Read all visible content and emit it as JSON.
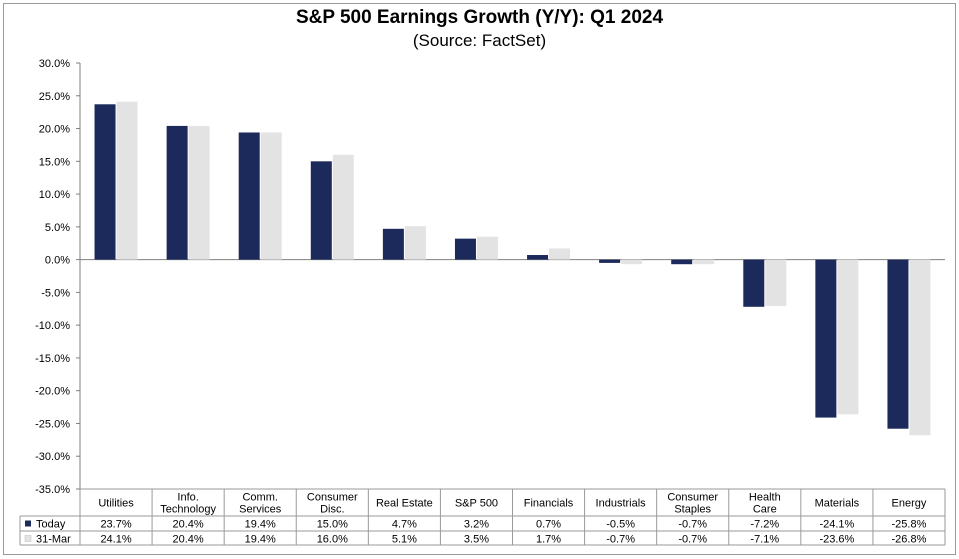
{
  "chart_data": {
    "type": "bar",
    "title": "S&P 500 Earnings Growth (Y/Y): Q1 2024",
    "subtitle": "(Source: FactSet)",
    "categories": [
      [
        "Utilities"
      ],
      [
        "Info.",
        "Technology"
      ],
      [
        "Comm.",
        "Services"
      ],
      [
        "Consumer",
        "Disc."
      ],
      [
        "Real Estate"
      ],
      [
        "S&P 500"
      ],
      [
        "Financials"
      ],
      [
        "Industrials"
      ],
      [
        "Consumer",
        "Staples"
      ],
      [
        "Health",
        "Care"
      ],
      [
        "Materials"
      ],
      [
        "Energy"
      ]
    ],
    "series": [
      {
        "name": "Today",
        "color": "#1b2a5a",
        "values": [
          23.7,
          20.4,
          19.4,
          15.0,
          4.7,
          3.2,
          0.7,
          -0.5,
          -0.7,
          -7.2,
          -24.1,
          -25.8
        ],
        "labels": [
          "23.7%",
          "20.4%",
          "19.4%",
          "15.0%",
          "4.7%",
          "3.2%",
          "0.7%",
          "-0.5%",
          "-0.7%",
          "-7.2%",
          "-24.1%",
          "-25.8%"
        ]
      },
      {
        "name": "31-Mar",
        "color": "#e3e3e3",
        "values": [
          24.1,
          20.4,
          19.4,
          16.0,
          5.1,
          3.5,
          1.7,
          -0.7,
          -0.7,
          -7.1,
          -23.6,
          -26.8
        ],
        "labels": [
          "24.1%",
          "20.4%",
          "19.4%",
          "16.0%",
          "5.1%",
          "3.5%",
          "1.7%",
          "-0.7%",
          "-0.7%",
          "-7.1%",
          "-23.6%",
          "-26.8%"
        ]
      }
    ],
    "ylim": [
      -35,
      30
    ],
    "yticks": [
      "30.0%",
      "25.0%",
      "20.0%",
      "15.0%",
      "10.0%",
      "5.0%",
      "0.0%",
      "-5.0%",
      "-10.0%",
      "-15.0%",
      "-20.0%",
      "-25.0%",
      "-30.0%",
      "-35.0%"
    ],
    "ytick_values": [
      30,
      25,
      20,
      15,
      10,
      5,
      0,
      -5,
      -10,
      -15,
      -20,
      -25,
      -30,
      -35
    ],
    "grid": false,
    "legend": "data-table-left"
  }
}
